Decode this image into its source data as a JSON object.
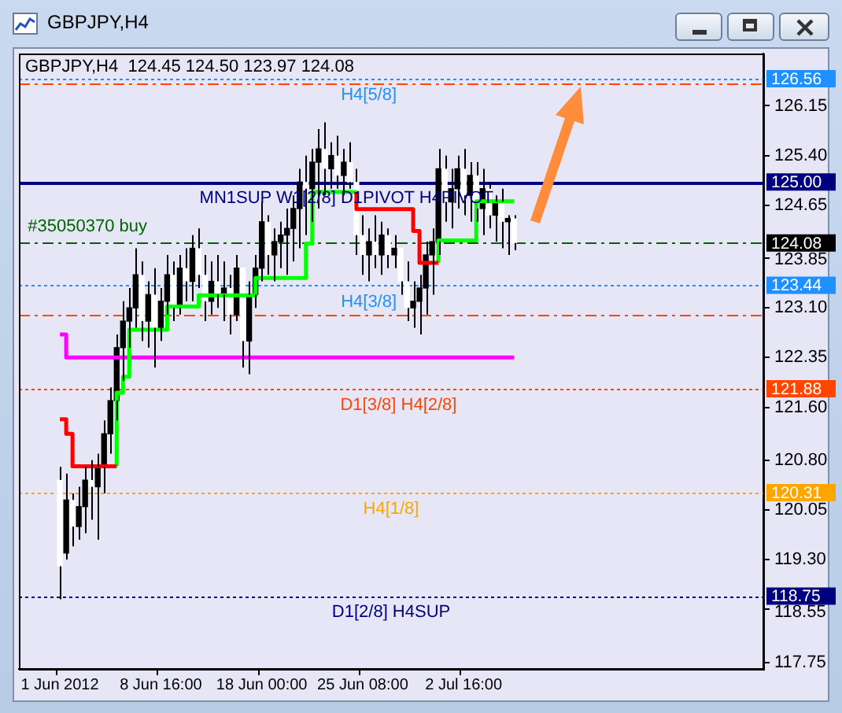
{
  "chart_data": {
    "type": "candlestick",
    "title": "GBPJPY,H4",
    "subtitle": "GBPJPY,H4  124.45 124.50 123.97 124.08",
    "categories": [
      null,
      null,
      null,
      null,
      null,
      null,
      "1 Jun 2012",
      null,
      null,
      null,
      null,
      null,
      null,
      null,
      null,
      null,
      null,
      null,
      null,
      null,
      null,
      null,
      "8 Jun 16:00",
      null,
      null,
      null,
      null,
      null,
      null,
      null,
      null,
      null,
      null,
      null,
      null,
      null,
      null,
      null,
      "18 Jun 00:00",
      null,
      null,
      null,
      null,
      null,
      null,
      null,
      null,
      null,
      null,
      null,
      null,
      null,
      null,
      null,
      "25 Jun 08:00",
      null,
      null,
      null,
      null,
      null,
      null,
      null,
      null,
      null,
      null,
      null,
      null,
      null,
      null,
      null,
      "2 Jul 16:00",
      null,
      null,
      null,
      null,
      null,
      null,
      null,
      null,
      null,
      null,
      null,
      null,
      null,
      null,
      null,
      null,
      null,
      null,
      null,
      null,
      null,
      null,
      null,
      null,
      null,
      null,
      null,
      null,
      null,
      null,
      null,
      null,
      null,
      null,
      null,
      null,
      null,
      null,
      null,
      null,
      null,
      null,
      null,
      null,
      null,
      null,
      null
    ],
    "ohlc": [
      null,
      null,
      null,
      null,
      null,
      null,
      [
        120.5,
        120.7,
        118.7,
        119.2
      ],
      [
        119.4,
        120.6,
        119.3,
        120.2
      ],
      [
        120.2,
        120.3,
        119.5,
        119.8
      ],
      [
        119.8,
        120.4,
        119.6,
        120.1
      ],
      [
        120.1,
        120.7,
        119.7,
        120.5
      ],
      [
        120.5,
        120.8,
        119.9,
        120.4
      ],
      [
        120.4,
        120.9,
        119.6,
        120.7
      ],
      [
        120.7,
        121.4,
        120.3,
        121.2
      ],
      [
        121.2,
        121.9,
        120.9,
        121.7
      ],
      [
        121.7,
        122.7,
        121.4,
        122.5
      ],
      [
        122.5,
        123.2,
        122.0,
        122.9
      ],
      [
        122.9,
        123.4,
        122.5,
        123.1
      ],
      [
        123.1,
        124.0,
        122.8,
        123.6
      ],
      [
        123.6,
        123.8,
        122.6,
        122.9
      ],
      [
        122.9,
        123.5,
        122.5,
        123.3
      ],
      [
        123.3,
        123.7,
        122.2,
        122.8
      ],
      [
        122.8,
        123.4,
        122.6,
        123.2
      ],
      [
        123.2,
        123.9,
        123.0,
        123.6
      ],
      [
        123.6,
        123.8,
        122.9,
        123.1
      ],
      [
        123.1,
        123.9,
        123.0,
        123.7
      ],
      [
        123.7,
        124.0,
        123.2,
        123.5
      ],
      [
        123.5,
        124.2,
        123.2,
        124.0
      ],
      [
        124.0,
        124.3,
        123.4,
        123.6
      ],
      [
        123.6,
        123.9,
        122.9,
        123.2
      ],
      [
        123.2,
        123.8,
        123.0,
        123.5
      ],
      [
        123.5,
        123.9,
        123.1,
        123.3
      ],
      [
        123.3,
        123.8,
        122.9,
        123.4
      ],
      [
        123.4,
        123.6,
        122.7,
        123.0
      ],
      [
        123.0,
        123.9,
        122.9,
        123.7
      ],
      [
        123.7,
        123.7,
        122.2,
        122.6
      ],
      [
        122.6,
        123.5,
        122.1,
        123.3
      ],
      [
        123.3,
        123.9,
        123.1,
        123.7
      ],
      [
        123.7,
        124.7,
        123.5,
        124.4
      ],
      [
        124.4,
        124.5,
        123.6,
        123.9
      ],
      [
        123.9,
        124.3,
        123.5,
        124.1
      ],
      [
        124.1,
        124.4,
        123.7,
        124.2
      ],
      [
        124.2,
        124.6,
        123.6,
        124.3
      ],
      [
        124.3,
        124.8,
        123.8,
        124.6
      ],
      [
        124.6,
        125.2,
        124.0,
        125.0
      ],
      [
        125.0,
        125.4,
        124.2,
        124.9
      ],
      [
        124.9,
        125.5,
        124.4,
        125.3
      ],
      [
        125.3,
        125.8,
        124.6,
        125.5
      ],
      [
        125.5,
        125.9,
        124.8,
        125.2
      ],
      [
        125.2,
        125.6,
        124.9,
        125.4
      ],
      [
        125.4,
        125.7,
        124.9,
        125.1
      ],
      [
        125.1,
        125.5,
        124.8,
        125.3
      ],
      [
        125.3,
        125.6,
        124.9,
        125.0
      ],
      [
        125.0,
        125.2,
        123.9,
        124.2
      ],
      [
        124.2,
        124.5,
        123.6,
        123.9
      ],
      [
        123.9,
        124.3,
        123.5,
        124.1
      ],
      [
        124.1,
        124.5,
        123.7,
        123.9
      ],
      [
        123.9,
        124.4,
        123.6,
        124.2
      ],
      [
        124.2,
        124.3,
        123.7,
        123.9
      ],
      [
        123.9,
        124.2,
        123.7,
        124.0
      ],
      [
        124.0,
        124.0,
        123.3,
        123.5
      ],
      [
        123.5,
        123.8,
        122.9,
        123.1
      ],
      [
        123.1,
        123.5,
        122.8,
        123.2
      ],
      [
        123.2,
        123.6,
        122.7,
        123.4
      ],
      [
        123.4,
        124.1,
        123.0,
        123.9
      ],
      [
        123.9,
        124.3,
        123.3,
        124.1
      ],
      [
        124.1,
        125.5,
        123.9,
        125.2
      ],
      [
        125.2,
        125.4,
        124.4,
        124.7
      ],
      [
        124.7,
        125.2,
        124.3,
        124.9
      ],
      [
        124.9,
        125.4,
        124.6,
        125.2
      ],
      [
        125.2,
        125.5,
        124.5,
        124.8
      ],
      [
        124.8,
        125.3,
        124.4,
        125.1
      ],
      [
        125.1,
        125.3,
        124.4,
        124.6
      ],
      [
        124.6,
        125.2,
        124.2,
        124.9
      ],
      [
        124.9,
        125.0,
        124.3,
        124.5
      ],
      [
        124.5,
        124.8,
        124.1,
        124.7
      ],
      [
        124.7,
        124.9,
        124.0,
        124.4
      ],
      [
        124.4,
        124.5,
        123.9,
        124.45
      ],
      [
        124.45,
        124.5,
        123.97,
        124.08
      ],
      null,
      null,
      null,
      null,
      null,
      null,
      null,
      null,
      null,
      null,
      null,
      null,
      null,
      null,
      null,
      null,
      null,
      null,
      null,
      null,
      null,
      null,
      null,
      null,
      null,
      null,
      null,
      null,
      null,
      null,
      null,
      null,
      null,
      null,
      null,
      null,
      null,
      null,
      null
    ],
    "series": [
      {
        "type": "step",
        "color": "#ff0000",
        "values": [
          null,
          null,
          null,
          null,
          null,
          null,
          121.42,
          121.42,
          121.2,
          120.71,
          120.71,
          120.71,
          120.71,
          120.71,
          120.71,
          120.71,
          null,
          null,
          null,
          null,
          null,
          null,
          null,
          null,
          null,
          null,
          null,
          null,
          null,
          null,
          null,
          null,
          null,
          null,
          null,
          null,
          null,
          null,
          null,
          null,
          null,
          null,
          null,
          null,
          null,
          null,
          null,
          null,
          null,
          null,
          null,
          null,
          null,
          124.85,
          124.59,
          124.59,
          124.59,
          124.59,
          124.59,
          124.59,
          124.59,
          124.59,
          124.59,
          124.26,
          123.78,
          123.78,
          123.78,
          null,
          null,
          null,
          null,
          null,
          null,
          null,
          null,
          null,
          null,
          null,
          null,
          null,
          null,
          null,
          null,
          null,
          null,
          null,
          null,
          null,
          null,
          null,
          null,
          null,
          null,
          null,
          null,
          null,
          null,
          null,
          null,
          null,
          null,
          null,
          null,
          null,
          null,
          null,
          null,
          null,
          null,
          null,
          null,
          null,
          null,
          null,
          null,
          null,
          null,
          null
        ]
      },
      {
        "type": "step",
        "color": "#00ff00",
        "values": [
          null,
          null,
          null,
          null,
          null,
          null,
          null,
          null,
          null,
          null,
          null,
          null,
          null,
          null,
          null,
          120.71,
          121.82,
          122.06,
          122.77,
          122.77,
          122.77,
          122.77,
          122.77,
          122.77,
          123.12,
          123.12,
          123.12,
          123.12,
          123.12,
          123.29,
          123.29,
          123.29,
          123.29,
          123.29,
          123.29,
          123.29,
          123.29,
          123.29,
          123.55,
          123.55,
          123.55,
          123.55,
          123.55,
          123.55,
          123.55,
          123.55,
          124.07,
          124.85,
          124.85,
          124.85,
          124.85,
          124.85,
          124.85,
          124.85,
          null,
          null,
          null,
          null,
          null,
          null,
          null,
          null,
          null,
          null,
          null,
          null,
          123.78,
          124.12,
          124.12,
          124.12,
          124.12,
          124.12,
          124.12,
          124.71,
          124.71,
          124.71,
          124.71,
          124.71,
          124.71,
          null,
          null,
          null,
          null,
          null,
          null,
          null,
          null,
          null,
          null,
          null,
          null,
          null,
          null,
          null,
          null,
          null,
          null,
          null,
          null,
          null,
          null,
          null,
          null,
          null,
          null,
          null,
          null,
          null,
          null,
          null,
          null,
          null,
          null,
          null,
          null,
          null,
          null,
          null
        ]
      },
      {
        "type": "step",
        "color": "#ff00ff",
        "values": [
          null,
          null,
          null,
          null,
          null,
          null,
          122.7,
          122.7,
          122.35,
          122.35,
          122.35,
          122.35,
          122.35,
          122.35,
          122.35,
          122.35,
          122.35,
          122.35,
          122.35,
          122.35,
          122.35,
          122.35,
          122.35,
          122.35,
          122.35,
          122.35,
          122.35,
          122.35,
          122.35,
          122.35,
          122.35,
          122.35,
          122.35,
          122.35,
          122.35,
          122.35,
          122.35,
          122.35,
          122.35,
          122.35,
          122.35,
          122.35,
          122.35,
          122.35,
          122.35,
          122.35,
          122.35,
          122.35,
          122.35,
          122.35,
          122.35,
          122.35,
          122.35,
          122.35,
          122.35,
          122.35,
          122.35,
          122.35,
          122.35,
          122.35,
          122.35,
          122.35,
          122.35,
          122.35,
          122.35,
          122.35,
          122.35,
          122.35,
          122.35,
          122.35,
          122.35,
          122.35,
          122.35,
          122.35,
          122.35,
          122.35,
          122.35,
          122.35,
          122.35,
          null,
          null,
          null,
          null,
          null,
          null,
          null,
          null,
          null,
          null,
          null,
          null,
          null,
          null,
          null,
          null,
          null,
          null,
          null,
          null,
          null,
          null,
          null,
          null,
          null,
          null,
          null,
          null,
          null,
          null,
          null,
          null,
          null,
          null,
          null,
          null,
          null,
          null,
          null
        ]
      }
    ],
    "annotations": [
      "126.56",
      "125.00",
      "124.08",
      "123.44",
      "121.88",
      "120.31",
      "118.75"
    ],
    "marker": "none",
    "ylim": [
      117.65,
      126.94
    ],
    "yticks": [
      126.15,
      {
        "value": 125.4,
        "label": "125.40"
      },
      124.65,
      123.85,
      {
        "value": 123.1,
        "label": "123.10"
      },
      122.35,
      {
        "value": 121.6,
        "label": "121.60"
      },
      {
        "value": 120.8,
        "label": "120.80"
      },
      120.05,
      {
        "value": 119.3,
        "label": "119.30"
      },
      118.55,
      117.75
    ],
    "ref_lines": [
      {
        "axis": "y",
        "value": 126.56,
        "label": "H4[5/8]",
        "color": "#1e90ff",
        "line_style": "dotted"
      },
      {
        "axis": "y",
        "value": 126.5,
        "color": "#ff4500",
        "line_style": "dashed"
      },
      {
        "axis": "y",
        "value": 125.0,
        "label": "MN1SUP W1[2/8] D1PIVOT H4PIVOT",
        "color": "#000080",
        "line_style": "solid"
      },
      {
        "axis": "y",
        "value": 124.08,
        "label": "#35050370 buy",
        "color": "#006400",
        "line_style": "dashed"
      },
      {
        "axis": "y",
        "value": 123.44,
        "label": "H4[3/8]",
        "color": "#1e90ff",
        "line_style": "dotted"
      },
      {
        "axis": "y",
        "value": 123.0,
        "color": "#ff4500",
        "line_style": "dashed"
      },
      {
        "axis": "y",
        "value": 121.88,
        "label": "D1[3/8] H4[2/8]",
        "color": "#ff4500",
        "line_style": "dotted"
      },
      {
        "axis": "y",
        "value": 120.31,
        "label": "H4[1/8]",
        "color": "#ffa500",
        "line_style": "dotted"
      },
      {
        "axis": "y",
        "value": 118.75,
        "label": "D1[2/8] H4SUP",
        "color": "#000080",
        "line_style": "dotted"
      }
    ]
  }
}
